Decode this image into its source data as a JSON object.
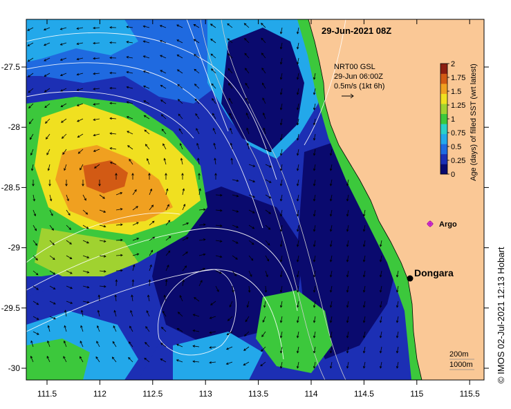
{
  "map": {
    "title": "29-Jun-2021 08Z",
    "current_legend": {
      "line1": "NRT00 GSL",
      "line2": "29-Jun 06:00Z",
      "line3": "0.5m/s (1kt 6h)"
    },
    "colorbar": {
      "label": "Age (days) of filled SST (wrt latest)",
      "ticks": [
        "0",
        "0.25",
        "0.5",
        "0.75",
        "1",
        "1.25",
        "1.5",
        "1.75",
        "2"
      ],
      "colors": [
        "#0a0a6e",
        "#1c2fb4",
        "#1f6ae0",
        "#23a8ea",
        "#2bd0c8",
        "#3cc83c",
        "#a0d230",
        "#f0e020",
        "#f0a020",
        "#d25a14",
        "#8c1e10"
      ]
    },
    "x_ticks": [
      "111.5",
      "112",
      "112.5",
      "113",
      "113.5",
      "114",
      "114.5",
      "115",
      "115.5"
    ],
    "y_ticks": [
      "-27.5",
      "-28",
      "-28.5",
      "-29",
      "-29.5",
      "-30"
    ],
    "places": {
      "dongara": "Dongara",
      "argo": "Argo"
    },
    "depth_legend": {
      "line1": "200m",
      "line2": "1000m"
    },
    "credit": "©  IMOS 02-Jul-2021 12:13 Hobart",
    "colors": {
      "land": "#fac896",
      "deep": "#0a0a6e",
      "frame": "#000000"
    }
  }
}
